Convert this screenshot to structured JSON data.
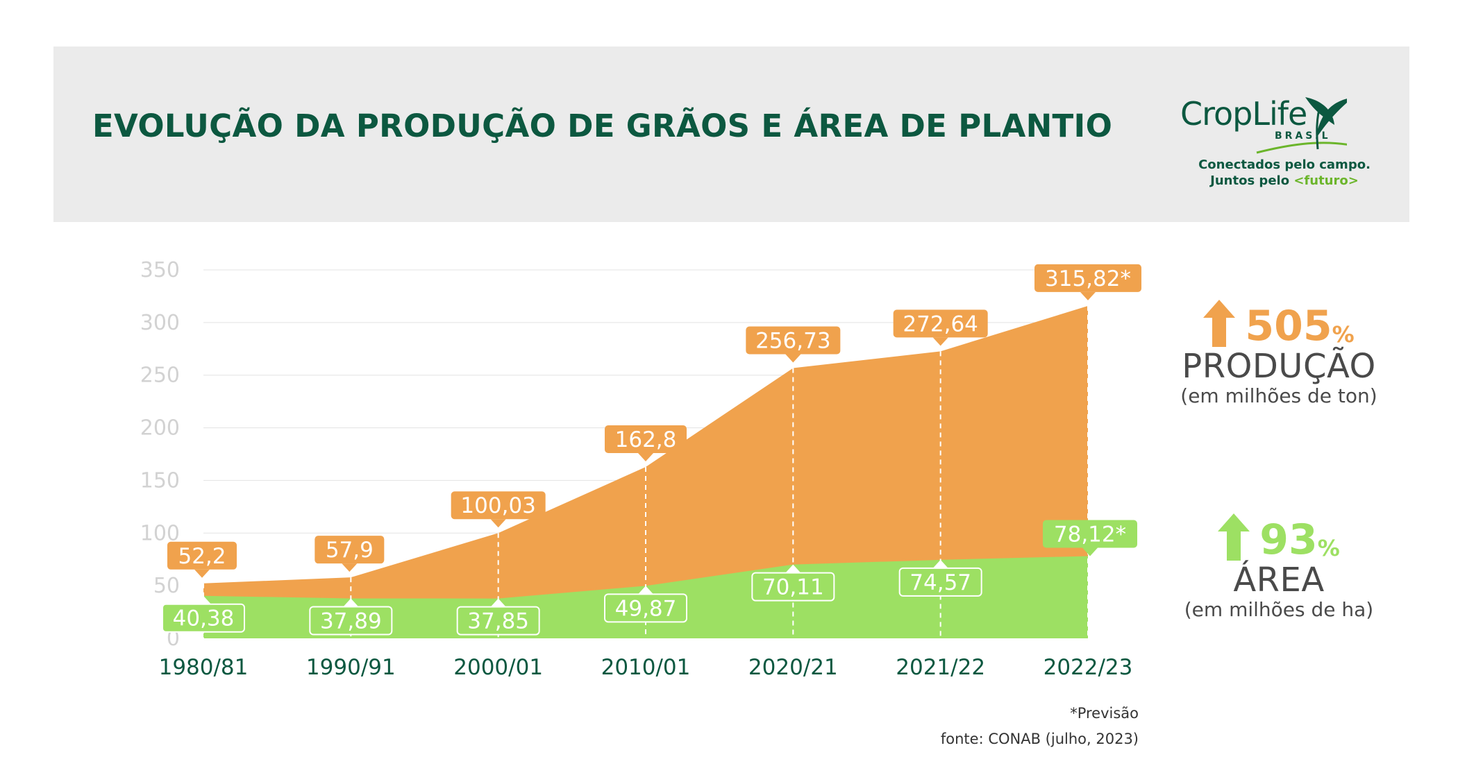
{
  "header": {
    "title": "EVOLUÇÃO DA PRODUÇÃO DE GRÃOS E ÁREA DE PLANTIO",
    "logo_text": "CropLife",
    "logo_sub": "BRASIL",
    "tagline_line1": "Conectados pelo campo.",
    "tagline_prefix": "Juntos pelo ",
    "tagline_highlight": "<futuro>"
  },
  "stats": {
    "production": {
      "pct": "505",
      "pct_sign": "%",
      "label": "PRODUÇÃO",
      "unit": "(em milhões de ton)",
      "color": "#f0a24d"
    },
    "area": {
      "pct": "93",
      "pct_sign": "%",
      "label": "ÁREA",
      "unit": "(em milhões de ha)",
      "color": "#9de063"
    }
  },
  "footer": {
    "note": "*Previsão",
    "source": "fonte: CONAB (julho, 2023)"
  },
  "chart_data": {
    "type": "area",
    "categories": [
      "1980/81",
      "1990/91",
      "2000/01",
      "2010/01",
      "2020/21",
      "2021/22",
      "2022/23"
    ],
    "ylim": [
      0,
      350
    ],
    "yticks": [
      "0",
      "50",
      "100",
      "150",
      "200",
      "250",
      "300",
      "350"
    ],
    "grid": true,
    "series": [
      {
        "values": [
          52.2,
          57.9,
          100.03,
          162.8,
          256.73,
          272.64,
          315.82
        ],
        "labels": [
          "52,2",
          "57,9",
          "100,03",
          "162,8",
          "256,73",
          "272,64",
          "315,82*"
        ],
        "color": "#f0a24d"
      },
      {
        "values": [
          40.38,
          37.89,
          37.85,
          49.87,
          70.11,
          74.57,
          78.12
        ],
        "labels": [
          "40,38",
          "37,89",
          "37,85",
          "49,87",
          "70,11",
          "74,57",
          "78,12*"
        ],
        "color": "#9de063"
      }
    ]
  }
}
